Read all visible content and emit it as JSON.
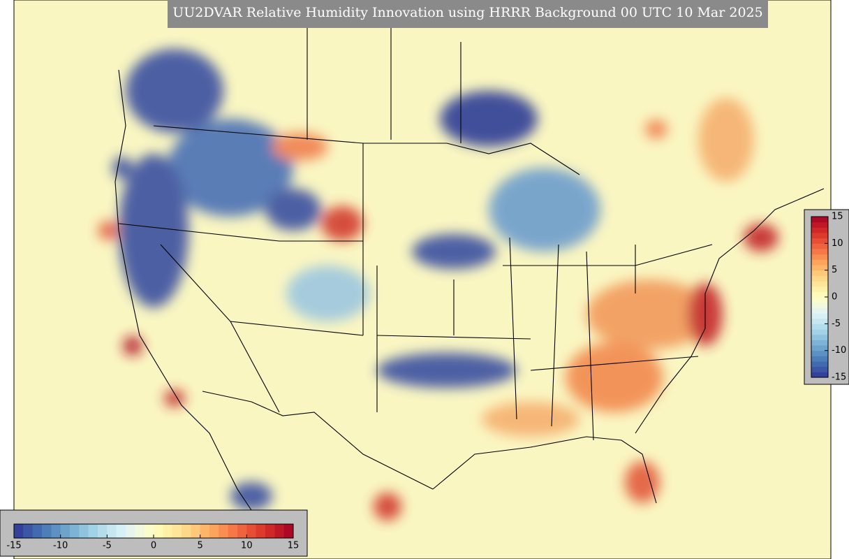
{
  "title": "UU2DVAR Relative Humidity Innovation using HRRR Background 00 UTC 10 Mar 2025",
  "colormap": [
    "#313695",
    "#4575b4",
    "#74add1",
    "#abd9e9",
    "#e0f3f8",
    "#ffffbf",
    "#fee090",
    "#fdae61",
    "#f46d43",
    "#d73027",
    "#a50026"
  ],
  "colorbars": [
    {
      "orientation": "vertical",
      "lim": [
        -15,
        15
      ],
      "ticks": [
        15,
        10,
        5,
        0,
        -5,
        -10,
        -15
      ]
    },
    {
      "orientation": "horizontal",
      "lim": [
        -15,
        15
      ],
      "ticks": [
        -15,
        -10,
        -5,
        0,
        5,
        10,
        15
      ]
    }
  ]
}
